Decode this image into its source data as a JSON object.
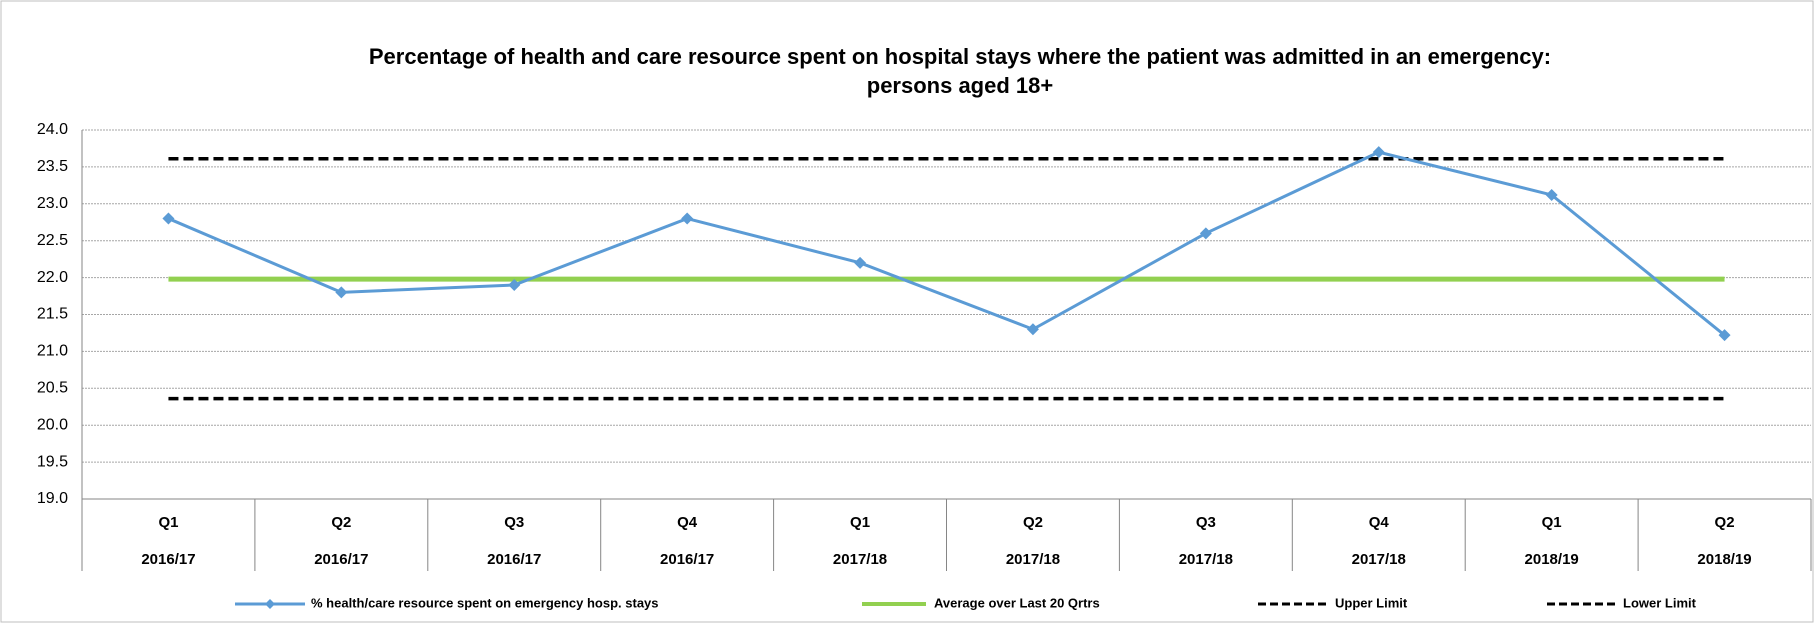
{
  "chart_data": {
    "type": "line",
    "title": [
      "Percentage of health and care resource spent on hospital stays where the patient was admitted in an emergency:",
      "persons aged 18+"
    ],
    "categories": [
      [
        "Q1",
        "2016/17"
      ],
      [
        "Q2",
        "2016/17"
      ],
      [
        "Q3",
        "2016/17"
      ],
      [
        "Q4",
        "2016/17"
      ],
      [
        "Q1",
        "2017/18"
      ],
      [
        "Q2",
        "2017/18"
      ],
      [
        "Q3",
        "2017/18"
      ],
      [
        "Q4",
        "2017/18"
      ],
      [
        "Q1",
        "2018/19"
      ],
      [
        "Q2",
        "2018/19"
      ]
    ],
    "series": [
      {
        "name": "% health/care resource spent on emergency hosp. stays",
        "color": "#5b9bd5",
        "style": "solid",
        "marker": "diamond",
        "values": [
          22.8,
          21.8,
          21.9,
          22.8,
          22.2,
          21.3,
          22.6,
          23.7,
          23.12,
          21.22
        ]
      },
      {
        "name": "Average over Last 20 Qrtrs",
        "color": "#92d050",
        "style": "solid",
        "values": [
          21.98,
          21.98,
          21.98,
          21.98,
          21.98,
          21.98,
          21.98,
          21.98,
          21.98,
          21.98
        ]
      },
      {
        "name": "Upper Limit",
        "color": "#000000",
        "style": "dashed",
        "values": [
          23.61,
          23.61,
          23.61,
          23.61,
          23.61,
          23.61,
          23.61,
          23.61,
          23.61,
          23.61
        ]
      },
      {
        "name": "Lower Limit",
        "color": "#000000",
        "style": "dashed",
        "values": [
          20.36,
          20.36,
          20.36,
          20.36,
          20.36,
          20.36,
          20.36,
          20.36,
          20.36,
          20.36
        ]
      }
    ],
    "ylim": [
      19,
      24
    ],
    "yticks": [
      {
        "value": 19,
        "label": "19.0"
      },
      {
        "value": 19.5,
        "label": "19.5"
      },
      {
        "value": 20,
        "label": "20.0"
      },
      {
        "value": 20.5,
        "label": "20.5"
      },
      {
        "value": 21,
        "label": "21.0"
      },
      {
        "value": 21.5,
        "label": "21.5"
      },
      {
        "value": 22,
        "label": "22.0"
      },
      {
        "value": 22.5,
        "label": "22.5"
      },
      {
        "value": 23,
        "label": "23.0"
      },
      {
        "value": 23.5,
        "label": "23.5"
      },
      {
        "value": 24,
        "label": "24.0"
      }
    ],
    "grid": true,
    "legend": "bottom"
  }
}
